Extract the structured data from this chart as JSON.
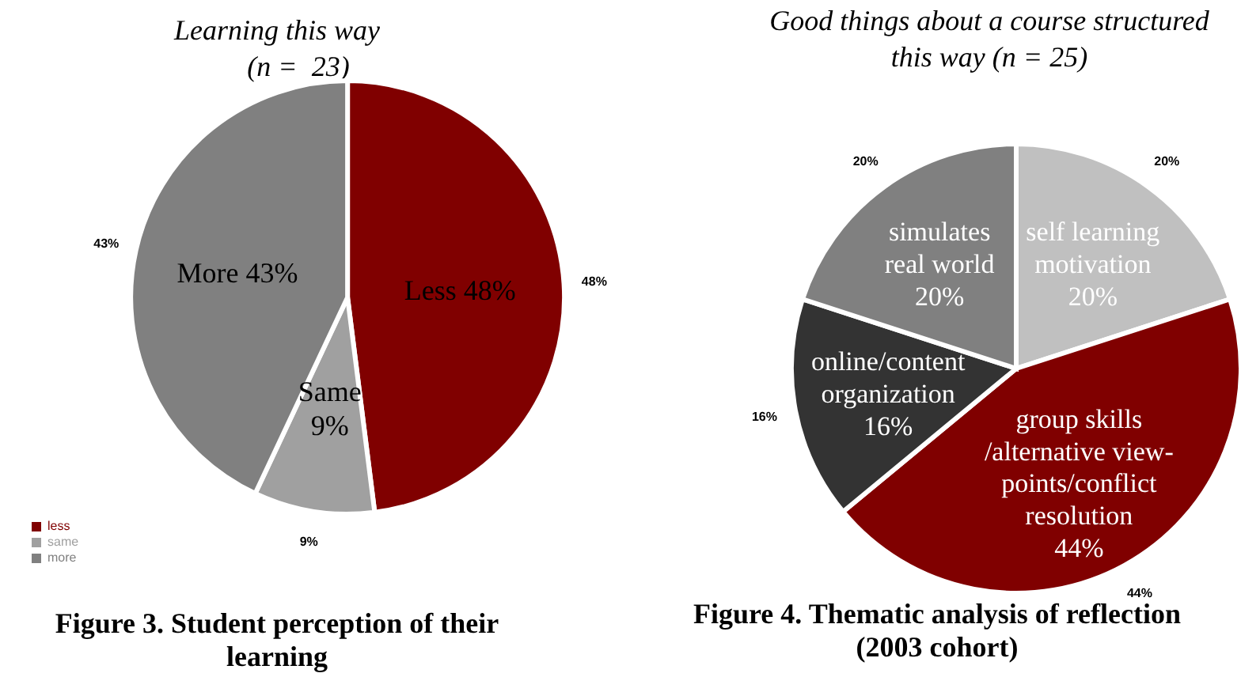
{
  "chart_data": [
    {
      "type": "pie",
      "title": "Learning this way\n      (n =  23)",
      "categories": [
        "less",
        "same",
        "more"
      ],
      "values": [
        48,
        9,
        43
      ],
      "colors": [
        "#800000",
        "#a0a0a0",
        "#808080"
      ],
      "value_labels": [
        "48%",
        "9%",
        "43%"
      ],
      "legend": "bottom left",
      "annotations": [
        {
          "text": "Less 48%",
          "x": "less"
        },
        {
          "text": "Same\n9%",
          "x": "same"
        },
        {
          "text": "More 43%",
          "x": "more"
        },
        "Figure 3. Student perception of their\nlearning"
      ]
    },
    {
      "type": "pie",
      "title": "Good things about a course structured\nthis way (n = 25)",
      "categories": [
        "self learning\nmotivation",
        "group skills\n/alternative view-\npoints/conflict\nresolution",
        "online/content\norganization",
        "simulates\nreal world"
      ],
      "values": [
        20,
        44,
        16,
        20
      ],
      "colors": [
        "#c0c0c0",
        "#800000",
        "#333333",
        "#808080"
      ],
      "value_labels": [
        "20%",
        "44%",
        "16%",
        "20%"
      ],
      "annotations": [
        "Figure 4. Thematic analysis of reflection\n(2003 cohort)"
      ]
    }
  ]
}
